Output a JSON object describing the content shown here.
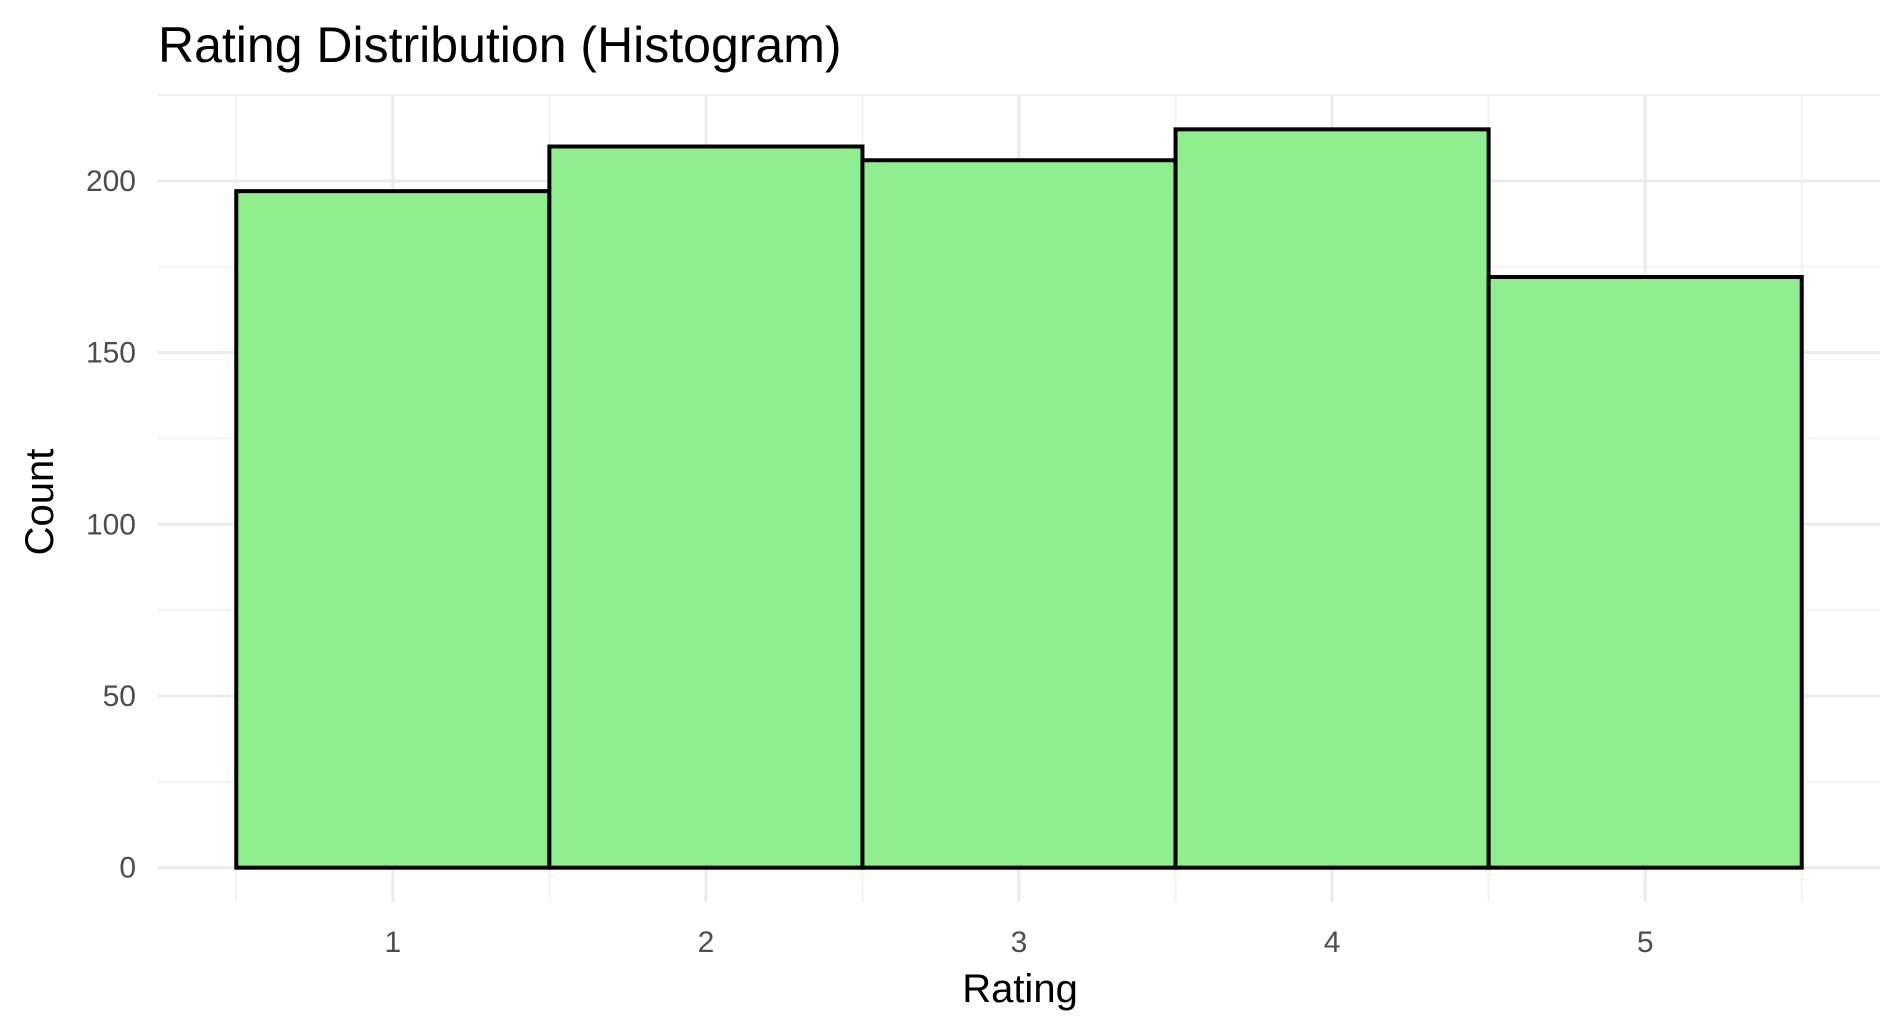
{
  "chart_data": {
    "type": "bar",
    "title": "Rating Distribution (Histogram)",
    "xlabel": "Rating",
    "ylabel": "Count",
    "categories": [
      "1",
      "2",
      "3",
      "4",
      "5"
    ],
    "bin_width": 1,
    "values": [
      197,
      210,
      206,
      215,
      172
    ],
    "xlim": [
      0.25,
      5.75
    ],
    "ylim": [
      -10,
      225
    ],
    "y_ticks": [
      "0",
      "50",
      "100",
      "150",
      "200"
    ],
    "x_ticks": [
      "1",
      "2",
      "3",
      "4",
      "5"
    ],
    "grid": true,
    "legend": "none",
    "colors": {
      "bar_fill": "#90EE90",
      "bar_outline": "#000000",
      "grid_major": "#ebebeb",
      "grid_minor": "#f3f3f3",
      "tick_text": "#4d4d4d"
    }
  }
}
